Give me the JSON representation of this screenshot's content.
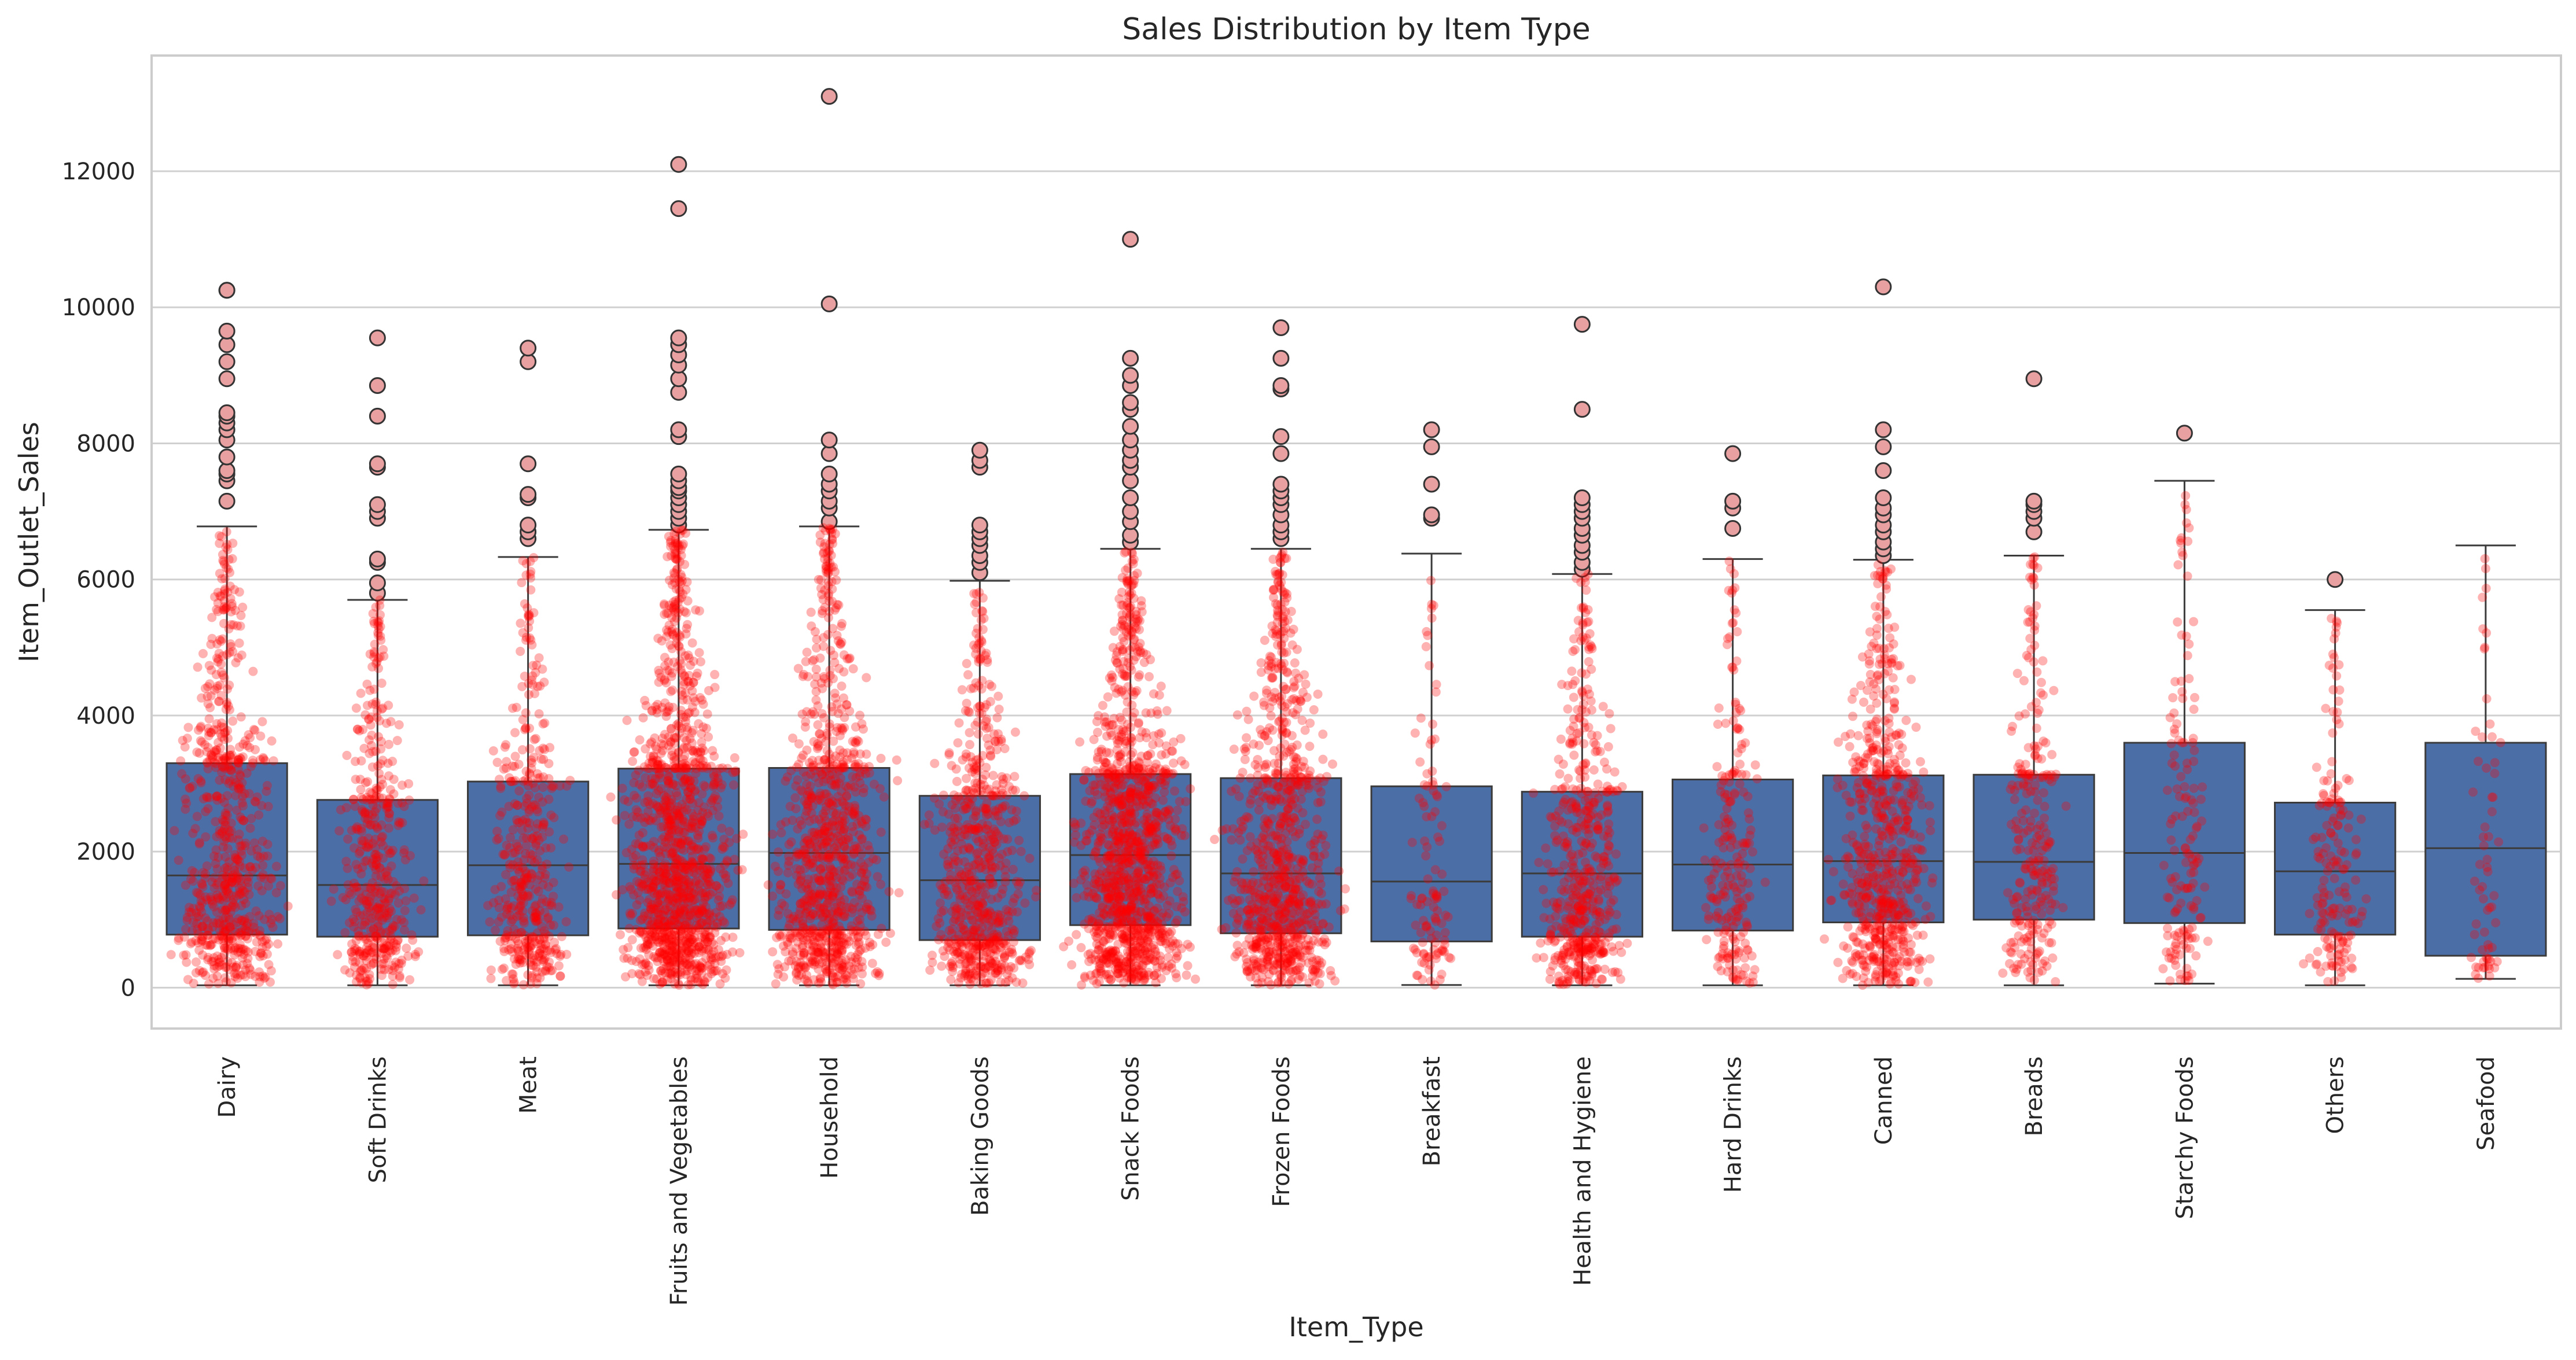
{
  "chart_data": {
    "type": "box",
    "overlay": "swarm",
    "title": "Sales Distribution by Item Type",
    "xlabel": "Item_Type",
    "ylabel": "Item_Outlet_Sales",
    "ylim": [
      -600,
      13700
    ],
    "yticks": [
      0,
      2000,
      4000,
      6000,
      8000,
      10000,
      12000
    ],
    "grid": true,
    "colors": {
      "box": "#4c6ea6",
      "box_edge": "#3b3b3b",
      "swarm": "#ff0000",
      "outlier_fill": "#e8a0a0",
      "grid": "#d0d0d0"
    },
    "categories": [
      "Dairy",
      "Soft Drinks",
      "Meat",
      "Fruits and Vegetables",
      "Household",
      "Baking Goods",
      "Snack Foods",
      "Frozen Foods",
      "Breakfast",
      "Health and Hygiene",
      "Hard Drinks",
      "Canned",
      "Breads",
      "Starchy Foods",
      "Others",
      "Seafood"
    ],
    "boxes": [
      {
        "q1": 780,
        "median": 1650,
        "q3": 3300,
        "whisker_low": 35,
        "whisker_high": 6780,
        "outliers": [
          7150,
          7450,
          7550,
          7600,
          7800,
          8050,
          8200,
          8300,
          8400,
          8450,
          8950,
          9200,
          9450,
          9650,
          10250,
          10250
        ]
      },
      {
        "q1": 750,
        "median": 1510,
        "q3": 2760,
        "whisker_low": 35,
        "whisker_high": 5700,
        "outliers": [
          5800,
          5950,
          6250,
          6300,
          6900,
          7000,
          7100,
          7650,
          7700,
          8400,
          8850,
          9550
        ]
      },
      {
        "q1": 770,
        "median": 1800,
        "q3": 3030,
        "whisker_low": 35,
        "whisker_high": 6330,
        "outliers": [
          6600,
          6700,
          6800,
          7200,
          7250,
          7700,
          9200,
          9400
        ]
      },
      {
        "q1": 870,
        "median": 1820,
        "q3": 3220,
        "whisker_low": 35,
        "whisker_high": 6730,
        "outliers": [
          6800,
          6900,
          7000,
          7100,
          7200,
          7300,
          7350,
          7450,
          7550,
          8100,
          8200,
          8750,
          8950,
          9150,
          9300,
          9450,
          9550,
          11450,
          12100
        ]
      },
      {
        "q1": 850,
        "median": 1980,
        "q3": 3230,
        "whisker_low": 35,
        "whisker_high": 6780,
        "outliers": [
          6850,
          7050,
          7150,
          7300,
          7400,
          7550,
          7850,
          8050,
          10050,
          13100
        ]
      },
      {
        "q1": 700,
        "median": 1580,
        "q3": 2820,
        "whisker_low": 35,
        "whisker_high": 5980,
        "outliers": [
          6100,
          6250,
          6350,
          6500,
          6600,
          6700,
          6800,
          7650,
          7750,
          7900
        ]
      },
      {
        "q1": 920,
        "median": 1950,
        "q3": 3140,
        "whisker_low": 35,
        "whisker_high": 6450,
        "outliers": [
          6550,
          6650,
          6850,
          7000,
          7200,
          7450,
          7650,
          7750,
          7900,
          8050,
          8250,
          8500,
          8600,
          8850,
          9000,
          9250,
          11000
        ]
      },
      {
        "q1": 800,
        "median": 1680,
        "q3": 3080,
        "whisker_low": 35,
        "whisker_high": 6450,
        "outliers": [
          6600,
          6700,
          6800,
          6950,
          7100,
          7200,
          7300,
          7400,
          7850,
          8100,
          8800,
          8850,
          9250,
          9700
        ]
      },
      {
        "q1": 680,
        "median": 1560,
        "q3": 2960,
        "whisker_low": 40,
        "whisker_high": 6380,
        "outliers": [
          6900,
          6950,
          7400,
          7950,
          8200
        ]
      },
      {
        "q1": 750,
        "median": 1680,
        "q3": 2880,
        "whisker_low": 35,
        "whisker_high": 6080,
        "outliers": [
          6150,
          6250,
          6400,
          6500,
          6650,
          6750,
          6900,
          7000,
          7100,
          7200,
          8500,
          9750
        ]
      },
      {
        "q1": 840,
        "median": 1810,
        "q3": 3060,
        "whisker_low": 35,
        "whisker_high": 6300,
        "outliers": [
          6750,
          7050,
          7150,
          7850
        ]
      },
      {
        "q1": 960,
        "median": 1860,
        "q3": 3120,
        "whisker_low": 35,
        "whisker_high": 6290,
        "outliers": [
          6350,
          6450,
          6550,
          6700,
          6800,
          6950,
          7050,
          7200,
          7600,
          7950,
          8200,
          10300
        ]
      },
      {
        "q1": 1000,
        "median": 1850,
        "q3": 3130,
        "whisker_low": 35,
        "whisker_high": 6350,
        "outliers": [
          6700,
          6900,
          7000,
          7100,
          7150,
          8950
        ]
      },
      {
        "q1": 950,
        "median": 1980,
        "q3": 3600,
        "whisker_low": 60,
        "whisker_high": 7450,
        "outliers": [
          8150
        ]
      },
      {
        "q1": 780,
        "median": 1710,
        "q3": 2720,
        "whisker_low": 35,
        "whisker_high": 5550,
        "outliers": [
          6000
        ]
      },
      {
        "q1": 470,
        "median": 2050,
        "q3": 3600,
        "whisker_low": 130,
        "whisker_high": 6500,
        "outliers": []
      }
    ],
    "swarm_counts": [
      680,
      445,
      425,
      1232,
      910,
      648,
      1200,
      856,
      110,
      520,
      214,
      649,
      251,
      148,
      169,
      64
    ]
  }
}
